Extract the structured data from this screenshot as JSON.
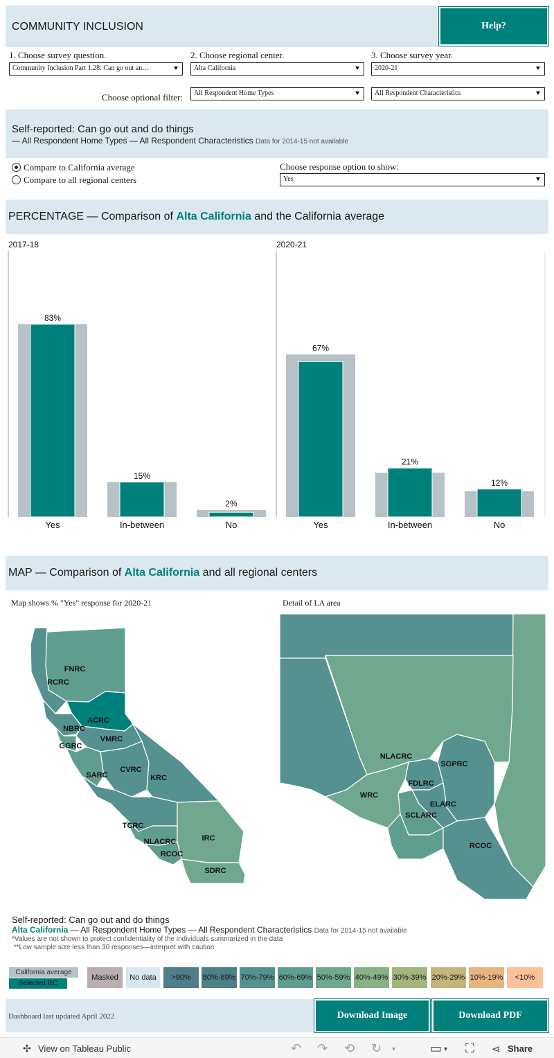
{
  "header": {
    "title": "COMMUNITY INCLUSION",
    "help_label": "Help?"
  },
  "filters": {
    "q1_label": "1. Choose survey question.",
    "q1_value": "Community Inclusion Part 1.28: Can go out an…",
    "q2_label": "2. Choose regional center.",
    "q2_value": "Alta California",
    "q3_label": "3. Choose survey year.",
    "q3_value": "2020-21",
    "optional_label": "Choose optional filter:",
    "home_type": "All Respondent Home Types",
    "characteristics": "All Respondent Characteristics"
  },
  "summary": {
    "title": "Self-reported: Can go out and do things",
    "subtitle": " — All Respondent Home Types — All Respondent Characteristics",
    "note": "Data for 2014-15 not available"
  },
  "compare": {
    "option1": "Compare to California average",
    "option2": "Compare to all regional centers",
    "response_label": "Choose response option to show:",
    "response_value": "Yes"
  },
  "pct_header": {
    "prefix": "PERCENTAGE — Comparison of ",
    "rc": "Alta California",
    "suffix": " and the California average"
  },
  "chart_data": {
    "type": "bar",
    "categories": [
      "Yes",
      "In-between",
      "No"
    ],
    "panels": [
      {
        "year": "2017-18",
        "series": [
          {
            "name": "California average",
            "values": [
              83,
              15,
              3
            ]
          },
          {
            "name": "Alta California",
            "values": [
              83,
              15,
              2
            ]
          }
        ],
        "labels": [
          "83%",
          "15%",
          "2%"
        ]
      },
      {
        "year": "2020-21",
        "series": [
          {
            "name": "California average",
            "values": [
              70,
              19,
              11
            ]
          },
          {
            "name": "Alta California",
            "values": [
              67,
              21,
              12
            ]
          }
        ],
        "labels": [
          "67%",
          "21%",
          "12%"
        ]
      }
    ],
    "ylim": [
      0,
      100
    ],
    "colors": {
      "average": "#b7c1c8",
      "selected": "#00807a"
    }
  },
  "map_header": {
    "prefix": "MAP — Comparison of ",
    "rc": "Alta California",
    "suffix": " and all regional centers"
  },
  "map": {
    "caption": "Map shows % \"Yes\" response for 2020-21",
    "detail_caption": "Detail of LA area",
    "state_labels": [
      "FNRC",
      "RCRC",
      "ACRC",
      "NBRC",
      "GGRC",
      "VMRC",
      "SARC",
      "CVRC",
      "KRC",
      "TCRC",
      "NLACRC",
      "RCOC",
      "IRC",
      "SDRC"
    ],
    "la_labels": [
      "NLACRC",
      "SGPRC",
      "FDLRC",
      "WRC",
      "ELARC",
      "SCLARC",
      "RCOC"
    ]
  },
  "footer_summary": {
    "title": "Self-reported: Can go out and do things",
    "rc": "Alta California",
    "line": " — All Respondent Home Types — All Respondent Characteristics",
    "note": "Data for 2014-15 not available",
    "footnote1": "*Values are not shown to protect confidentiality of the individuals summarized in the data",
    "footnote2": " **Low sample size less than 30 responses—interpret with caution"
  },
  "legend": {
    "ca_average": "California average",
    "selected_rc": "Selected RC",
    "items": [
      "Masked",
      "No data",
      ">90%",
      "80%-89%",
      "70%-79%",
      "60%-69%",
      "50%-59%",
      "40%-49%",
      "30%-39%",
      "20%-29%",
      "10%-19%",
      "<10%"
    ],
    "colors": [
      "#b9aeb0",
      "#d8e7f0",
      "#4f7d8c",
      "#4f7f88",
      "#55928f",
      "#5f9e8f",
      "#6fa88e",
      "#88b285",
      "#a3b57d",
      "#c3b47b",
      "#e9b482",
      "#fdc19a"
    ]
  },
  "bottom": {
    "updated": "Dashboard last updated April 2022",
    "download_image": "Download Image",
    "download_pdf": "Download PDF"
  },
  "toolbar": {
    "view_label": "View on Tableau Public",
    "share_label": "Share"
  }
}
